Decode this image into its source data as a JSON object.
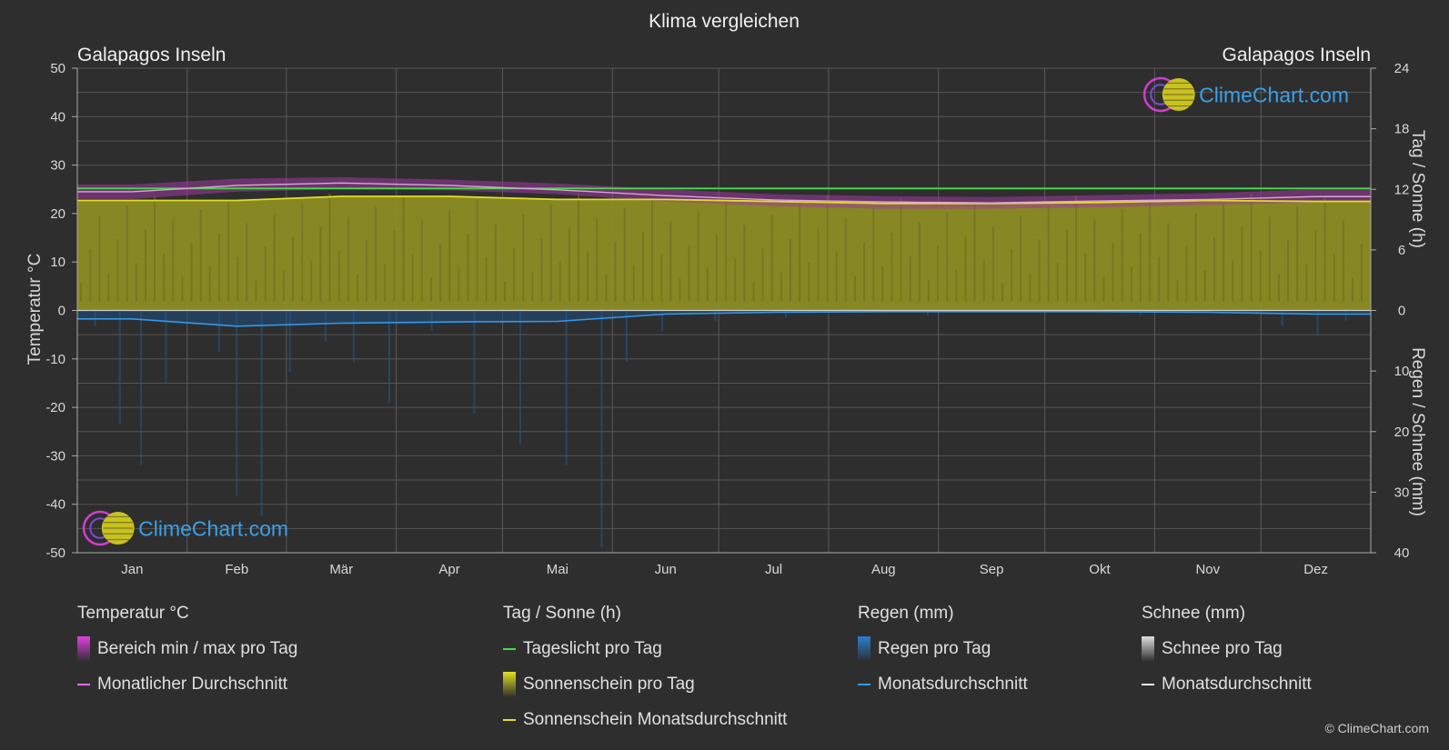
{
  "chart_data": {
    "type": "line",
    "title": "Klima vergleichen",
    "location_left": "Galapagos Inseln",
    "location_right": "Galapagos Inseln",
    "categories": [
      "Jan",
      "Feb",
      "Mär",
      "Apr",
      "Mai",
      "Jun",
      "Jul",
      "Aug",
      "Sep",
      "Okt",
      "Nov",
      "Dez"
    ],
    "y_left": {
      "label": "Temperatur °C",
      "range": [
        -50,
        50
      ],
      "ticks": [
        "50",
        "40",
        "30",
        "20",
        "10",
        "0",
        "-10",
        "-20",
        "-30",
        "-40",
        "-50"
      ]
    },
    "y_right_top": {
      "label": "Tag / Sonne (h)",
      "range": [
        0,
        24
      ],
      "ticks": [
        "24",
        "18",
        "12",
        "6",
        "0"
      ]
    },
    "y_right_bottom": {
      "label": "Regen / Schnee (mm)",
      "range": [
        0,
        40
      ],
      "ticks": [
        "0",
        "10",
        "20",
        "30",
        "40"
      ]
    },
    "series": [
      {
        "name": "Tageslicht pro Tag",
        "unit": "h",
        "color": "#44dd44",
        "values": [
          12.1,
          12.1,
          12.1,
          12.1,
          12.1,
          12.1,
          12.1,
          12.1,
          12.1,
          12.1,
          12.1,
          12.1
        ]
      },
      {
        "name": "Sonnenschein Monatsdurchschnitt",
        "unit": "h",
        "color": "#e0e020",
        "values": [
          10.9,
          10.9,
          11.3,
          11.3,
          11.0,
          11.0,
          10.8,
          10.6,
          10.6,
          10.7,
          10.9,
          10.8
        ]
      },
      {
        "name": "Monatlicher Durchschnitt",
        "unit": "°C",
        "color": "#ff66ff",
        "values": [
          24.5,
          25.8,
          26.3,
          25.8,
          24.9,
          23.7,
          22.8,
          22.4,
          22.2,
          22.6,
          22.9,
          23.5
        ]
      },
      {
        "name": "Regen Monatsdurchschnitt",
        "unit": "mm",
        "color": "#3399ee",
        "values": [
          1.4,
          2.6,
          2.1,
          1.9,
          1.8,
          0.6,
          0.3,
          0.2,
          0.2,
          0.2,
          0.3,
          0.6
        ]
      }
    ],
    "temp_range_band": {
      "min": [
        23.0,
        24.5,
        25.0,
        24.8,
        24.0,
        22.5,
        21.5,
        21.0,
        21.0,
        21.3,
        21.8,
        22.3
      ],
      "max": [
        26.0,
        27.2,
        27.5,
        27.0,
        26.2,
        25.0,
        24.0,
        23.6,
        23.4,
        23.8,
        24.2,
        25.0
      ]
    },
    "grid": true
  },
  "legend": {
    "groups": [
      {
        "title": "Temperatur °C",
        "items": [
          {
            "label": "Bereich min / max pro Tag",
            "swatch": "box",
            "color": "#e040e0"
          },
          {
            "label": "Monatlicher Durchschnitt",
            "swatch": "line",
            "color": "#ff66ff"
          }
        ]
      },
      {
        "title": "Tag / Sonne (h)",
        "items": [
          {
            "label": "Tageslicht pro Tag",
            "swatch": "line",
            "color": "#44dd44"
          },
          {
            "label": "Sonnenschein pro Tag",
            "swatch": "box",
            "color": "#e0e020"
          },
          {
            "label": "Sonnenschein Monatsdurchschnitt",
            "swatch": "line",
            "color": "#e0e020"
          }
        ]
      },
      {
        "title": "Regen (mm)",
        "items": [
          {
            "label": "Regen pro Tag",
            "swatch": "box",
            "color": "#2a7fd0"
          },
          {
            "label": "Monatsdurchschnitt",
            "swatch": "line",
            "color": "#3399ee"
          }
        ]
      },
      {
        "title": "Schnee (mm)",
        "items": [
          {
            "label": "Schnee pro Tag",
            "swatch": "box",
            "color": "#dddddd"
          },
          {
            "label": "Monatsdurchschnitt",
            "swatch": "line",
            "color": "#eeeeee"
          }
        ]
      }
    ]
  },
  "watermark": "ClimeChart.com",
  "copyright": "© ClimeChart.com"
}
